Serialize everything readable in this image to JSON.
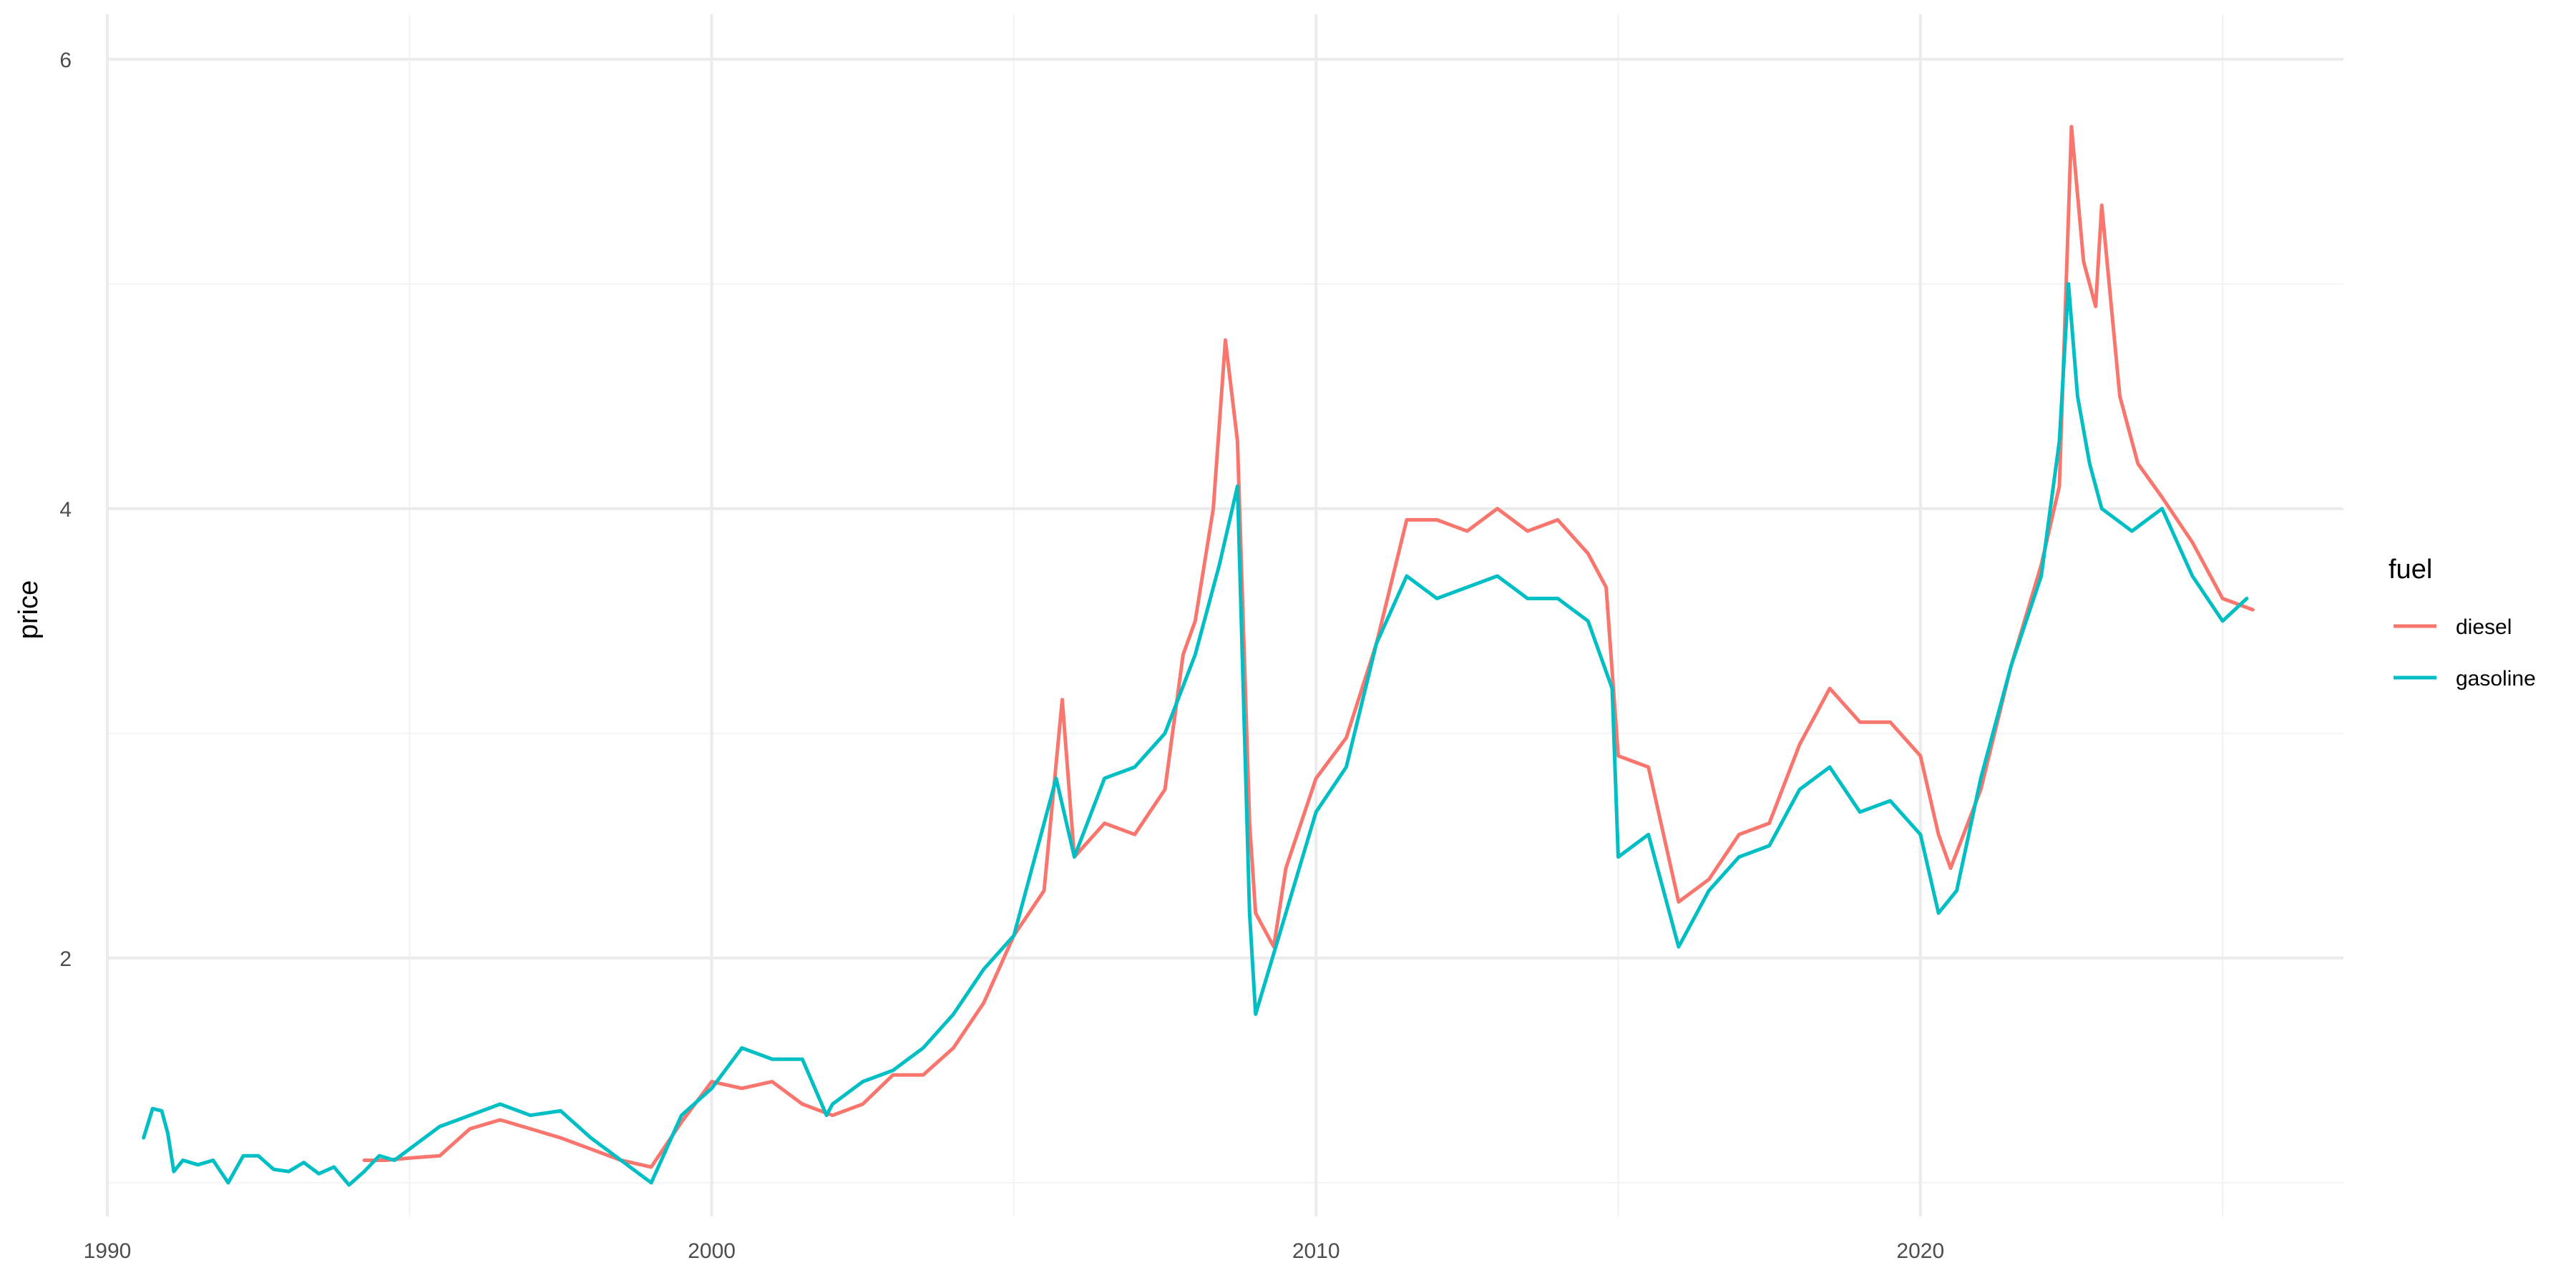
{
  "chart_data": {
    "type": "line",
    "title": "",
    "xlabel": "",
    "ylabel": "price",
    "xlim": [
      1990,
      2027
    ],
    "ylim": [
      0.85,
      6.2
    ],
    "x_ticks": [
      1990,
      2000,
      2010,
      2020
    ],
    "y_ticks": [
      2,
      4,
      6
    ],
    "grid": true,
    "legend": {
      "title": "fuel",
      "position": "right"
    },
    "series": [
      {
        "name": "diesel",
        "color": "#F8766D",
        "x": [
          1994.25,
          1994.6,
          1995.0,
          1995.5,
          1996.0,
          1996.5,
          1997.0,
          1997.5,
          1998.0,
          1998.5,
          1999.0,
          1999.5,
          2000.0,
          2000.5,
          2001.0,
          2001.5,
          2002.0,
          2002.5,
          2003.0,
          2003.5,
          2004.0,
          2004.5,
          2005.0,
          2005.5,
          2005.8,
          2006.0,
          2006.5,
          2007.0,
          2007.5,
          2007.8,
          2008.0,
          2008.3,
          2008.5,
          2008.7,
          2008.9,
          2009.0,
          2009.3,
          2009.5,
          2010.0,
          2010.5,
          2011.0,
          2011.5,
          2012.0,
          2012.5,
          2013.0,
          2013.5,
          2014.0,
          2014.5,
          2014.8,
          2015.0,
          2015.5,
          2016.0,
          2016.5,
          2017.0,
          2017.5,
          2018.0,
          2018.5,
          2019.0,
          2019.5,
          2020.0,
          2020.3,
          2020.5,
          2021.0,
          2021.5,
          2022.0,
          2022.3,
          2022.5,
          2022.7,
          2022.9,
          2023.0,
          2023.3,
          2023.6,
          2024.0,
          2024.5,
          2025.0,
          2025.5
        ],
        "values": [
          1.1,
          1.1,
          1.11,
          1.12,
          1.24,
          1.28,
          1.24,
          1.2,
          1.15,
          1.1,
          1.07,
          1.27,
          1.45,
          1.42,
          1.45,
          1.35,
          1.3,
          1.35,
          1.48,
          1.48,
          1.6,
          1.8,
          2.1,
          2.3,
          3.15,
          2.45,
          2.6,
          2.55,
          2.75,
          3.35,
          3.5,
          4.0,
          4.75,
          4.3,
          2.6,
          2.2,
          2.05,
          2.4,
          2.8,
          2.98,
          3.4,
          3.95,
          3.95,
          3.9,
          4.0,
          3.9,
          3.95,
          3.8,
          3.65,
          2.9,
          2.85,
          2.25,
          2.35,
          2.55,
          2.6,
          2.95,
          3.2,
          3.05,
          3.05,
          2.9,
          2.55,
          2.4,
          2.75,
          3.3,
          3.75,
          4.1,
          5.7,
          5.1,
          4.9,
          5.35,
          4.5,
          4.2,
          4.05,
          3.85,
          3.6,
          3.55
        ]
      },
      {
        "name": "gasoline",
        "color": "#00BFC4",
        "x": [
          1990.6,
          1990.75,
          1990.9,
          1991.0,
          1991.1,
          1991.25,
          1991.5,
          1991.75,
          1992.0,
          1992.25,
          1992.5,
          1992.75,
          1993.0,
          1993.25,
          1993.5,
          1993.75,
          1994.0,
          1994.25,
          1994.5,
          1994.75,
          1995.0,
          1995.5,
          1996.0,
          1996.5,
          1997.0,
          1997.5,
          1998.0,
          1998.5,
          1999.0,
          1999.5,
          2000.0,
          2000.5,
          2001.0,
          2001.5,
          2001.9,
          2002.0,
          2002.5,
          2003.0,
          2003.5,
          2004.0,
          2004.5,
          2005.0,
          2005.7,
          2006.0,
          2006.5,
          2007.0,
          2007.5,
          2008.0,
          2008.4,
          2008.7,
          2008.9,
          2009.0,
          2009.5,
          2010.0,
          2010.5,
          2011.0,
          2011.5,
          2012.0,
          2012.5,
          2013.0,
          2013.5,
          2014.0,
          2014.5,
          2014.9,
          2015.0,
          2015.5,
          2016.0,
          2016.5,
          2017.0,
          2017.5,
          2018.0,
          2018.5,
          2019.0,
          2019.5,
          2020.0,
          2020.3,
          2020.6,
          2021.0,
          2021.5,
          2022.0,
          2022.3,
          2022.45,
          2022.6,
          2022.8,
          2023.0,
          2023.5,
          2024.0,
          2024.5,
          2025.0,
          2025.4
        ],
        "values": [
          1.2,
          1.33,
          1.32,
          1.22,
          1.05,
          1.1,
          1.08,
          1.1,
          1.0,
          1.12,
          1.12,
          1.06,
          1.05,
          1.09,
          1.04,
          1.07,
          0.99,
          1.05,
          1.12,
          1.1,
          1.15,
          1.25,
          1.3,
          1.35,
          1.3,
          1.32,
          1.2,
          1.1,
          1.0,
          1.3,
          1.42,
          1.6,
          1.55,
          1.55,
          1.3,
          1.35,
          1.45,
          1.5,
          1.6,
          1.75,
          1.95,
          2.1,
          2.8,
          2.45,
          2.8,
          2.85,
          3.0,
          3.35,
          3.75,
          4.1,
          2.2,
          1.75,
          2.2,
          2.65,
          2.85,
          3.4,
          3.7,
          3.6,
          3.65,
          3.7,
          3.6,
          3.6,
          3.5,
          3.2,
          2.45,
          2.55,
          2.05,
          2.3,
          2.45,
          2.5,
          2.75,
          2.85,
          2.65,
          2.7,
          2.55,
          2.2,
          2.3,
          2.8,
          3.3,
          3.7,
          4.3,
          5.0,
          4.5,
          4.2,
          4.0,
          3.9,
          4.0,
          3.7,
          3.5,
          3.6
        ]
      }
    ]
  }
}
